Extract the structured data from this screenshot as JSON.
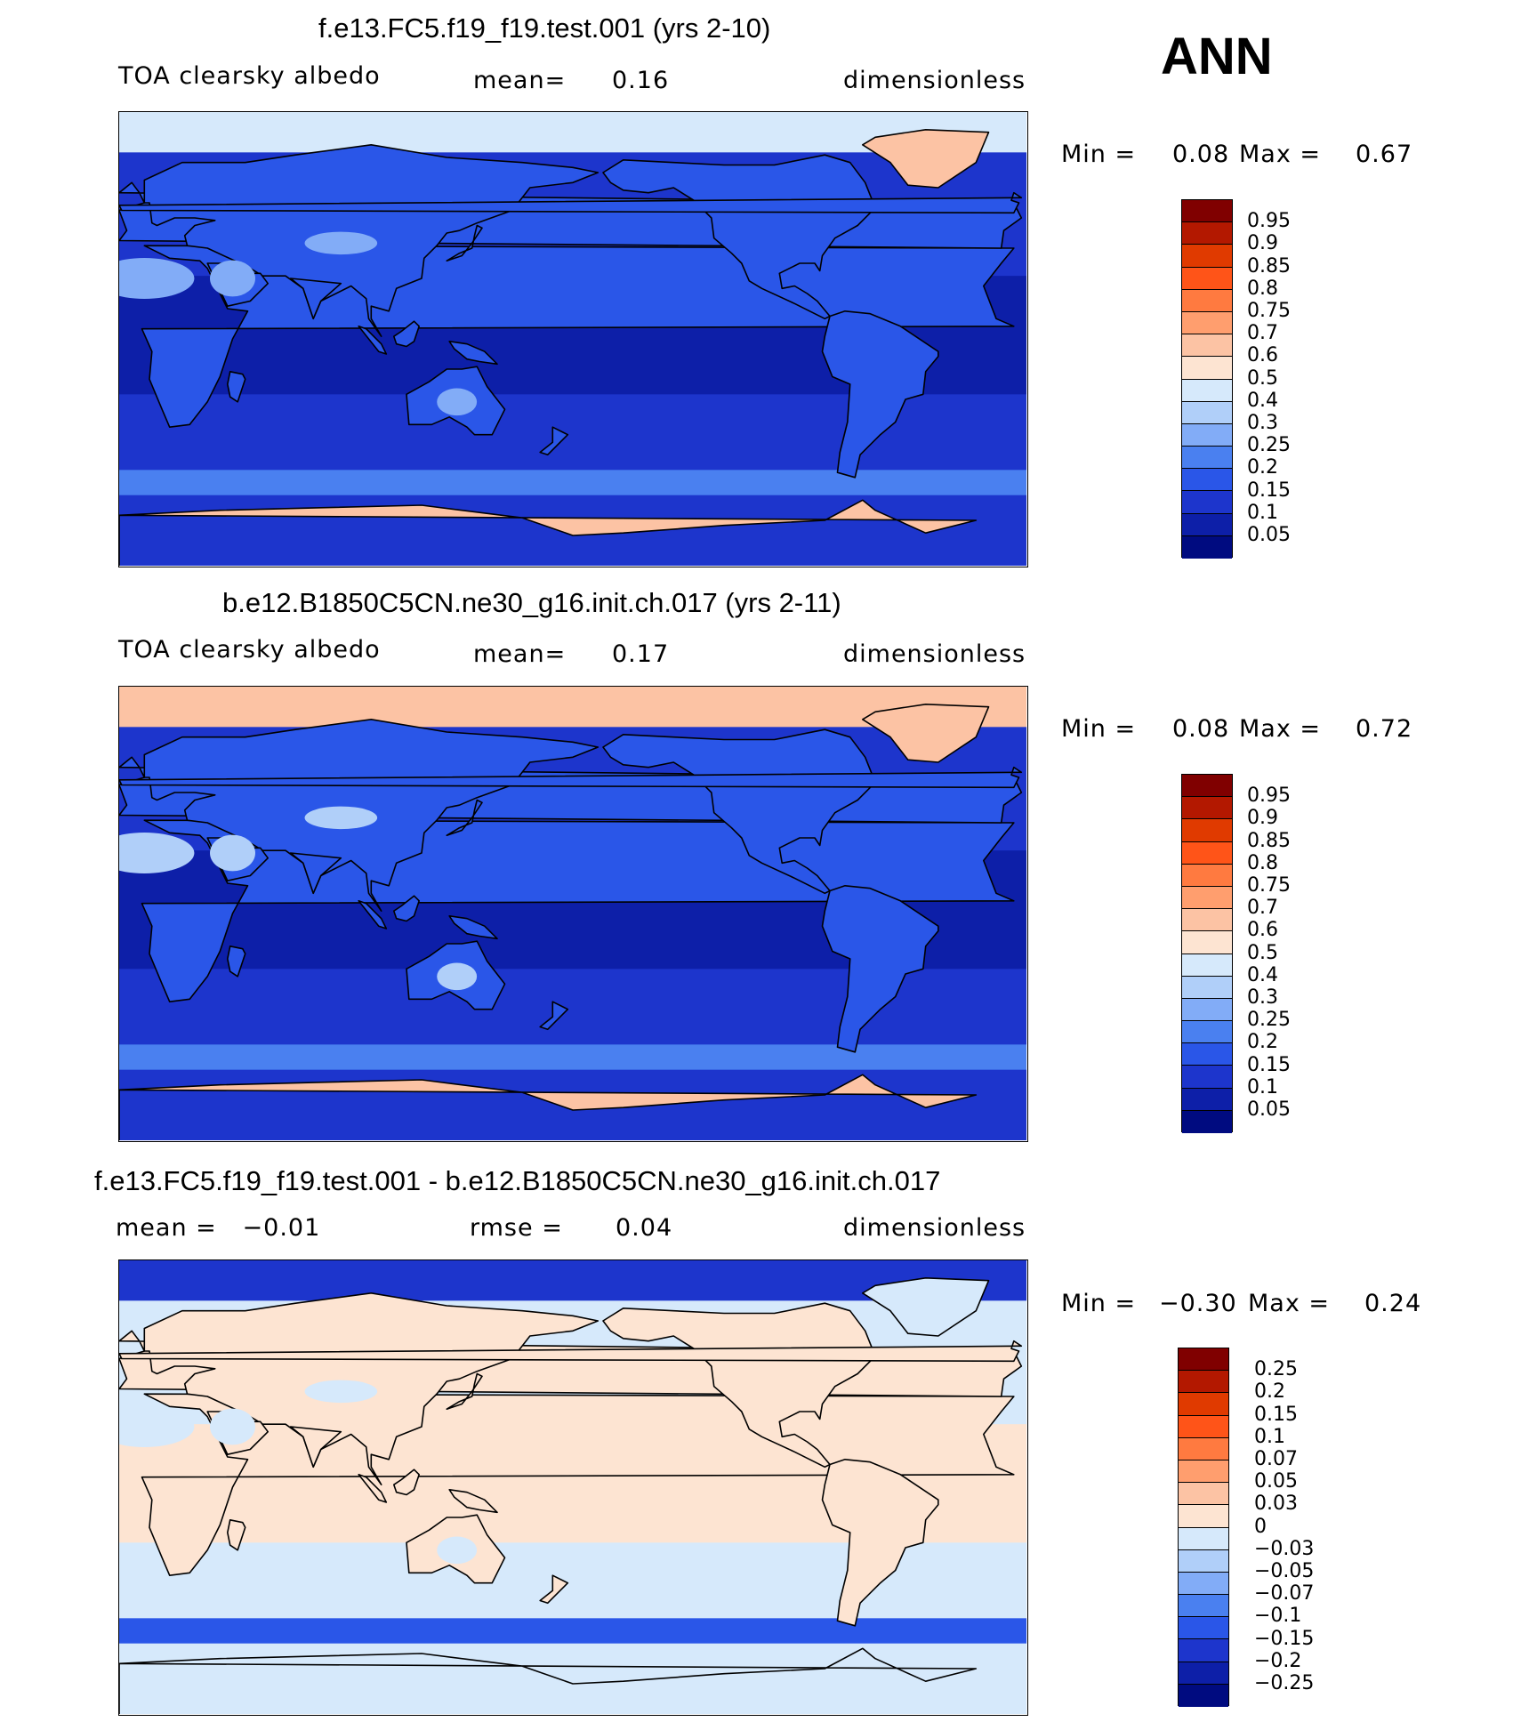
{
  "season": "ANN",
  "panels": [
    {
      "title": "f.e13.FC5.f19_f19.test.001 (yrs 2-10)",
      "left_label": "TOA clearsky albedo",
      "mid_key": "mean=",
      "mid_value": "0.16",
      "units": "dimensionless",
      "min_label": "Min =",
      "min_value": "0.08",
      "max_label": "Max =",
      "max_value": "0.67",
      "colorbar_labels": [
        "0.95",
        "0.9",
        "0.85",
        "0.8",
        "0.75",
        "0.7",
        "0.6",
        "0.5",
        "0.4",
        "0.3",
        "0.25",
        "0.2",
        "0.15",
        "0.1",
        "0.05"
      ],
      "colorbar_colors": [
        "#800000",
        "#b31800",
        "#e03a00",
        "#ff5418",
        "#ff7a40",
        "#ff9e6e",
        "#fcc3a4",
        "#fde4d2",
        "#d6e9fb",
        "#b0cff9",
        "#82acf7",
        "#4a80f0",
        "#2a56e8",
        "#1d35cc",
        "#0d1fa8",
        "#000b80"
      ],
      "ocean_color": "#1d35cc",
      "tropic_color": "#0d1fa8",
      "land_color": "#2a56e8",
      "desert_color": "#82acf7",
      "south_band_color": "#4a80f0",
      "ice_color": "#fcc3a4",
      "arctic_color": "#d6e9fb"
    },
    {
      "title": "b.e12.B1850C5CN.ne30_g16.init.ch.017 (yrs 2-11)",
      "left_label": "TOA clearsky albedo",
      "mid_key": "mean=",
      "mid_value": "0.17",
      "units": "dimensionless",
      "min_label": "Min =",
      "min_value": "0.08",
      "max_label": "Max =",
      "max_value": "0.72",
      "colorbar_labels": [
        "0.95",
        "0.9",
        "0.85",
        "0.8",
        "0.75",
        "0.7",
        "0.6",
        "0.5",
        "0.4",
        "0.3",
        "0.25",
        "0.2",
        "0.15",
        "0.1",
        "0.05"
      ],
      "colorbar_colors": [
        "#800000",
        "#b31800",
        "#e03a00",
        "#ff5418",
        "#ff7a40",
        "#ff9e6e",
        "#fcc3a4",
        "#fde4d2",
        "#d6e9fb",
        "#b0cff9",
        "#82acf7",
        "#4a80f0",
        "#2a56e8",
        "#1d35cc",
        "#0d1fa8",
        "#000b80"
      ],
      "ocean_color": "#1d35cc",
      "tropic_color": "#0d1fa8",
      "land_color": "#2a56e8",
      "desert_color": "#b0cff9",
      "south_band_color": "#4a80f0",
      "ice_color": "#fcc3a4",
      "arctic_color": "#fcc3a4"
    },
    {
      "title": "f.e13.FC5.f19_f19.test.001 - b.e12.B1850C5CN.ne30_g16.init.ch.017",
      "left_label": "mean =   −0.01",
      "mid_key": "rmse =",
      "mid_value": "0.04",
      "units": "dimensionless",
      "min_label": "Min =",
      "min_value": "−0.30",
      "max_label": "Max =",
      "max_value": "0.24",
      "colorbar_labels": [
        "0.25",
        "0.2",
        "0.15",
        "0.1",
        "0.07",
        "0.05",
        "0.03",
        "0",
        "−0.03",
        "−0.05",
        "−0.07",
        "−0.1",
        "−0.15",
        "−0.2",
        "−0.25"
      ],
      "colorbar_colors": [
        "#800000",
        "#b31800",
        "#e03a00",
        "#ff5418",
        "#ff7a40",
        "#ff9e6e",
        "#fcc3a4",
        "#fde4d2",
        "#d6e9fb",
        "#b0cff9",
        "#82acf7",
        "#4a80f0",
        "#2a56e8",
        "#1d35cc",
        "#0d1fa8",
        "#000b80"
      ],
      "ocean_color": "#d6e9fb",
      "tropic_color": "#fde4d2",
      "land_color": "#fde4d2",
      "desert_color": "#d6e9fb",
      "south_band_color": "#2a56e8",
      "ice_color": "#d6e9fb",
      "arctic_color": "#1d35cc"
    }
  ]
}
